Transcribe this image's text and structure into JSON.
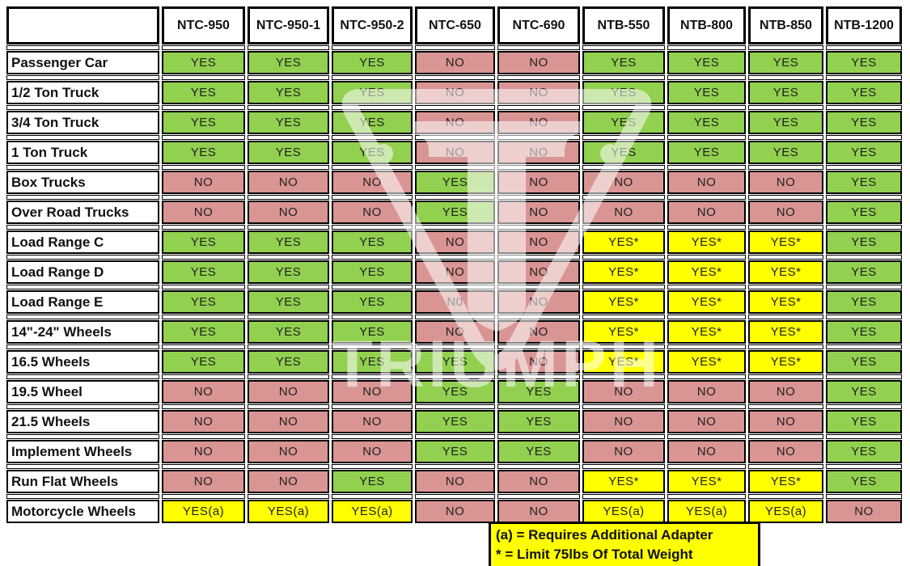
{
  "chart_data": {
    "type": "table",
    "title": "Tire changer model compatibility matrix",
    "columns": [
      "NTC-950",
      "NTC-950-1",
      "NTC-950-2",
      "NTC-650",
      "NTC-690",
      "NTB-550",
      "NTB-800",
      "NTB-850",
      "NTB-1200"
    ],
    "rows": [
      {
        "label": "Passenger Car",
        "values": [
          "YES",
          "YES",
          "YES",
          "NO",
          "NO",
          "YES",
          "YES",
          "YES",
          "YES"
        ]
      },
      {
        "label": "1/2 Ton Truck",
        "values": [
          "YES",
          "YES",
          "YES",
          "NO",
          "NO",
          "YES",
          "YES",
          "YES",
          "YES"
        ]
      },
      {
        "label": "3/4 Ton Truck",
        "values": [
          "YES",
          "YES",
          "YES",
          "NO",
          "NO",
          "YES",
          "YES",
          "YES",
          "YES"
        ]
      },
      {
        "label": "1 Ton Truck",
        "values": [
          "YES",
          "YES",
          "YES",
          "NO",
          "NO",
          "YES",
          "YES",
          "YES",
          "YES"
        ]
      },
      {
        "label": "Box Trucks",
        "values": [
          "NO",
          "NO",
          "NO",
          "YES",
          "NO",
          "NO",
          "NO",
          "NO",
          "YES"
        ]
      },
      {
        "label": "Over Road Trucks",
        "values": [
          "NO",
          "NO",
          "NO",
          "YES",
          "NO",
          "NO",
          "NO",
          "NO",
          "YES"
        ]
      },
      {
        "label": "Load Range C",
        "values": [
          "YES",
          "YES",
          "YES",
          "NO",
          "NO",
          "YES*",
          "YES*",
          "YES*",
          "YES"
        ]
      },
      {
        "label": "Load Range D",
        "values": [
          "YES",
          "YES",
          "YES",
          "NO",
          "NO",
          "YES*",
          "YES*",
          "YES*",
          "YES"
        ]
      },
      {
        "label": "Load Range E",
        "values": [
          "YES",
          "YES",
          "YES",
          "N0",
          "NO",
          "YES*",
          "YES*",
          "YES*",
          "YES"
        ]
      },
      {
        "label": "14\"-24\" Wheels",
        "values": [
          "YES",
          "YES",
          "YES",
          "NO",
          "NO",
          "YES*",
          "YES*",
          "YES*",
          "YES"
        ]
      },
      {
        "label": "16.5 Wheels",
        "values": [
          "YES",
          "YES",
          "YES",
          "YES",
          "NO",
          "YES*",
          "YES*",
          "YES*",
          "YES"
        ]
      },
      {
        "label": "19.5 Wheel",
        "values": [
          "NO",
          "NO",
          "NO",
          "YES",
          "YES",
          "NO",
          "NO",
          "NO",
          "YES"
        ]
      },
      {
        "label": "21.5 Wheels",
        "values": [
          "NO",
          "NO",
          "NO",
          "YES",
          "YES",
          "NO",
          "NO",
          "NO",
          "YES"
        ]
      },
      {
        "label": "Implement Wheels",
        "values": [
          "NO",
          "NO",
          "NO",
          "YES",
          "YES",
          "NO",
          "NO",
          "NO",
          "YES"
        ]
      },
      {
        "label": "Run Flat Wheels",
        "values": [
          "NO",
          "NO",
          "YES",
          "NO",
          "NO",
          "YES*",
          "YES*",
          "YES*",
          "YES"
        ]
      },
      {
        "label": "Motorcycle Wheels",
        "values": [
          "YES(a)",
          "YES(a)",
          "YES(a)",
          "NO",
          "NO",
          "YES(a)",
          "YES(a)",
          "YES(a)",
          "NO"
        ]
      }
    ],
    "footnotes": [
      "(a) = Requires Additional Adapter",
      "* = Limit 75lbs Of Total Weight"
    ],
    "watermark_text": "TRIUMPH",
    "legend_position": "bottom",
    "grid": true
  },
  "colors": {
    "yes": "#92D050",
    "no": "#D99594",
    "conditional": "#FFFF00",
    "header_bg": "#FFFFFF",
    "border": "#000000"
  }
}
